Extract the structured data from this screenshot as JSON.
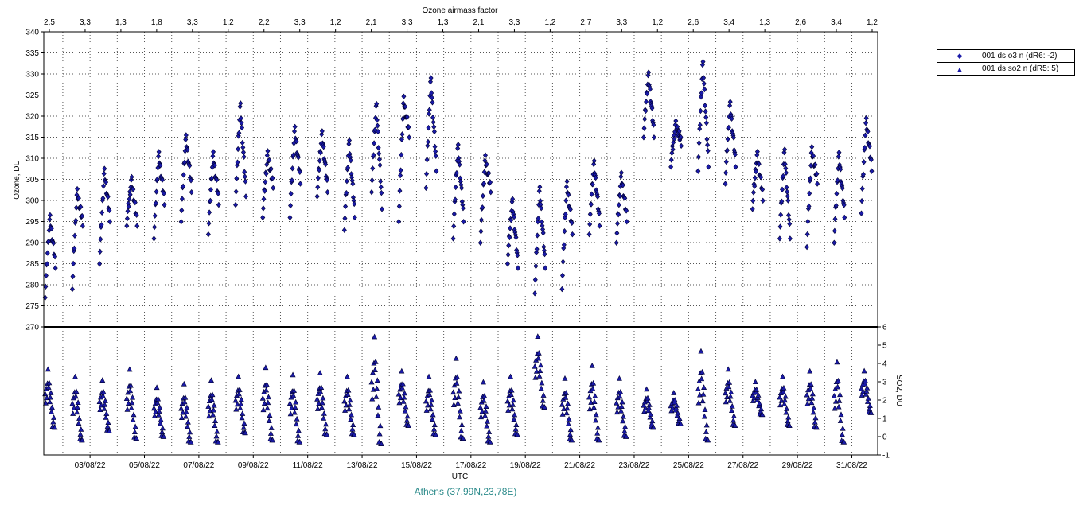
{
  "chart_data": {
    "type": "scatter",
    "top_axis_title": "Ozone airmass factor",
    "top_tick_labels": [
      "2,5",
      "3,3",
      "1,3",
      "1,8",
      "3,3",
      "1,2",
      "2,2",
      "3,3",
      "1,2",
      "2,1",
      "3,3",
      "1,3",
      "2,1",
      "3,3",
      "1,2",
      "2,7",
      "3,3",
      "1,2",
      "2,6",
      "3,4",
      "1,3",
      "2,6",
      "3,4",
      "1,2"
    ],
    "x_ticks": [
      "03/08/22",
      "05/08/22",
      "07/08/22",
      "09/08/22",
      "11/08/22",
      "13/08/22",
      "15/08/22",
      "17/08/22",
      "19/08/22",
      "21/08/22",
      "23/08/22",
      "25/08/22",
      "27/08/22",
      "29/08/22",
      "31/08/22"
    ],
    "xlabel": "UTC",
    "ylabel": "Ozone, DU",
    "ylim": [
      270,
      340
    ],
    "y_ticks": [
      "270",
      "275",
      "280",
      "285",
      "290",
      "295",
      "300",
      "305",
      "310",
      "315",
      "320",
      "325",
      "330",
      "335",
      "340"
    ],
    "y2label": "SO2, DU",
    "y2lim": [
      -1,
      6
    ],
    "y2_ticks": [
      "-1",
      "0",
      "1",
      "2",
      "3",
      "4",
      "5",
      "6"
    ],
    "x_range_days": [
      1.3,
      31.95
    ],
    "grid": true,
    "legend_position": "right",
    "footer": "Athens (37,99N,23,78E)",
    "colors": {
      "marker_fill": "#1a1aa8",
      "marker_edge": "#000033",
      "footer": "#2a8a8a"
    },
    "series": [
      {
        "name": "001 ds o3  n (dR6: -2)",
        "marker": "diamond",
        "daily": [
          {
            "x": 1.35,
            "start": 278,
            "peak": 296,
            "end": 285
          },
          {
            "x": 2.35,
            "start": 280,
            "peak": 302,
            "end": 295
          },
          {
            "x": 3.35,
            "start": 286,
            "peak": 307,
            "end": 296
          },
          {
            "x": 4.35,
            "start": 295,
            "peak": 305,
            "end": 295
          },
          {
            "x": 5.35,
            "start": 292,
            "peak": 311,
            "end": 300
          },
          {
            "x": 6.35,
            "start": 296,
            "peak": 315,
            "end": 303
          },
          {
            "x": 7.35,
            "start": 293,
            "peak": 311,
            "end": 300
          },
          {
            "x": 8.35,
            "start": 300,
            "peak": 323,
            "end": 302
          },
          {
            "x": 9.35,
            "start": 297,
            "peak": 311,
            "end": 304
          },
          {
            "x": 10.35,
            "start": 297,
            "peak": 317,
            "end": 305
          },
          {
            "x": 11.35,
            "start": 302,
            "peak": 316,
            "end": 303
          },
          {
            "x": 12.35,
            "start": 294,
            "peak": 314,
            "end": 297
          },
          {
            "x": 13.35,
            "start": 303,
            "peak": 323,
            "end": 299
          },
          {
            "x": 14.35,
            "start": 296,
            "peak": 324,
            "end": 316
          },
          {
            "x": 15.35,
            "start": 304,
            "peak": 329,
            "end": 308
          },
          {
            "x": 16.35,
            "start": 292,
            "peak": 313,
            "end": 296
          },
          {
            "x": 17.35,
            "start": 291,
            "peak": 310,
            "end": 303
          },
          {
            "x": 18.35,
            "start": 286,
            "peak": 300,
            "end": 285
          },
          {
            "x": 19.35,
            "start": 279,
            "peak": 303,
            "end": 285
          },
          {
            "x": 20.35,
            "start": 280,
            "peak": 304,
            "end": 293
          },
          {
            "x": 21.35,
            "start": 293,
            "peak": 309,
            "end": 295
          },
          {
            "x": 22.35,
            "start": 291,
            "peak": 306,
            "end": 296
          },
          {
            "x": 23.35,
            "start": 316,
            "peak": 330,
            "end": 316
          },
          {
            "x": 24.35,
            "start": 309,
            "peak": 318,
            "end": 314
          },
          {
            "x": 25.35,
            "start": 308,
            "peak": 333,
            "end": 309
          },
          {
            "x": 26.35,
            "start": 305,
            "peak": 323,
            "end": 309
          },
          {
            "x": 27.35,
            "start": 299,
            "peak": 311,
            "end": 301
          },
          {
            "x": 28.35,
            "start": 292,
            "peak": 312,
            "end": 292
          },
          {
            "x": 29.35,
            "start": 290,
            "peak": 312,
            "end": 305
          },
          {
            "x": 30.35,
            "start": 291,
            "peak": 311,
            "end": 297
          },
          {
            "x": 31.35,
            "start": 298,
            "peak": 319,
            "end": 308
          }
        ]
      },
      {
        "name": "001 ds so2 n (dR5: 5)",
        "marker": "triangle",
        "daily": [
          {
            "x": 1.35,
            "low": 0.5,
            "high": 3.7
          },
          {
            "x": 2.35,
            "low": -0.2,
            "high": 3.3
          },
          {
            "x": 3.35,
            "low": 0.3,
            "high": 3.1
          },
          {
            "x": 4.35,
            "low": -0.1,
            "high": 3.7
          },
          {
            "x": 5.35,
            "low": 0.0,
            "high": 2.7
          },
          {
            "x": 6.35,
            "low": -0.3,
            "high": 2.9
          },
          {
            "x": 7.35,
            "low": -0.3,
            "high": 3.1
          },
          {
            "x": 8.35,
            "low": 0.2,
            "high": 3.3
          },
          {
            "x": 9.35,
            "low": -0.2,
            "high": 3.8
          },
          {
            "x": 10.35,
            "low": -0.3,
            "high": 3.4
          },
          {
            "x": 11.35,
            "low": 0.1,
            "high": 3.5
          },
          {
            "x": 12.35,
            "low": 0.1,
            "high": 3.3
          },
          {
            "x": 13.35,
            "low": -0.4,
            "high": 5.5
          },
          {
            "x": 14.35,
            "low": 0.6,
            "high": 3.6
          },
          {
            "x": 15.35,
            "low": 0.1,
            "high": 3.3
          },
          {
            "x": 16.35,
            "low": -0.1,
            "high": 4.3
          },
          {
            "x": 17.35,
            "low": -0.3,
            "high": 3.0
          },
          {
            "x": 18.35,
            "low": 0.1,
            "high": 3.3
          },
          {
            "x": 19.35,
            "low": 1.6,
            "high": 5.5
          },
          {
            "x": 20.35,
            "low": -0.2,
            "high": 3.2
          },
          {
            "x": 21.35,
            "low": -0.2,
            "high": 3.9
          },
          {
            "x": 22.35,
            "low": 0.0,
            "high": 3.2
          },
          {
            "x": 23.35,
            "low": 0.5,
            "high": 2.6
          },
          {
            "x": 24.35,
            "low": 0.7,
            "high": 2.4
          },
          {
            "x": 25.35,
            "low": -0.2,
            "high": 4.7
          },
          {
            "x": 26.35,
            "low": 0.6,
            "high": 3.7
          },
          {
            "x": 27.35,
            "low": 1.2,
            "high": 3.0
          },
          {
            "x": 28.35,
            "low": 0.6,
            "high": 3.3
          },
          {
            "x": 29.35,
            "low": 0.5,
            "high": 3.6
          },
          {
            "x": 30.35,
            "low": -0.3,
            "high": 4.1
          },
          {
            "x": 31.35,
            "low": 1.3,
            "high": 3.6
          }
        ]
      }
    ]
  }
}
